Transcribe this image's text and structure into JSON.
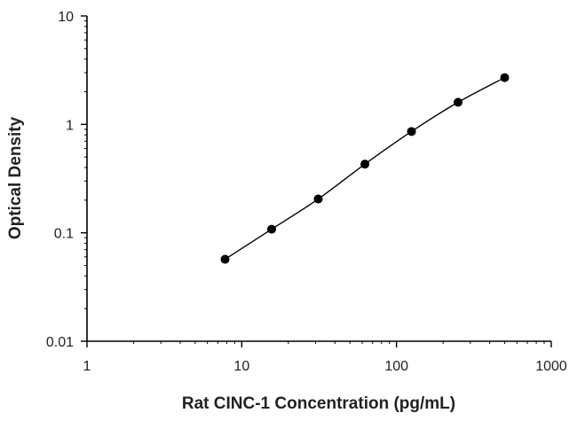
{
  "chart_data": {
    "type": "scatter",
    "title": "",
    "xlabel": "Rat CINC-1 Concentration (pg/mL)",
    "ylabel": "Optical Density",
    "x_scale": "log",
    "y_scale": "log",
    "xlim": [
      1,
      1000
    ],
    "ylim": [
      0.01,
      10
    ],
    "x_ticks": [
      1,
      10,
      100,
      1000
    ],
    "x_tick_labels": [
      "1",
      "10",
      "100",
      "1000"
    ],
    "y_ticks": [
      0.01,
      0.1,
      1,
      10
    ],
    "y_tick_labels": [
      "0.01",
      "0.1",
      "1",
      "10"
    ],
    "grid": false,
    "legend": "none",
    "fit_curve": true,
    "series": [
      {
        "x": [
          7.8,
          15.6,
          31.2,
          62.5,
          125,
          250,
          500
        ],
        "y": [
          0.057,
          0.108,
          0.205,
          0.43,
          0.86,
          1.6,
          2.7
        ]
      }
    ],
    "colors": {
      "marker": "#000000",
      "line": "#000000",
      "axis": "#000000"
    }
  }
}
